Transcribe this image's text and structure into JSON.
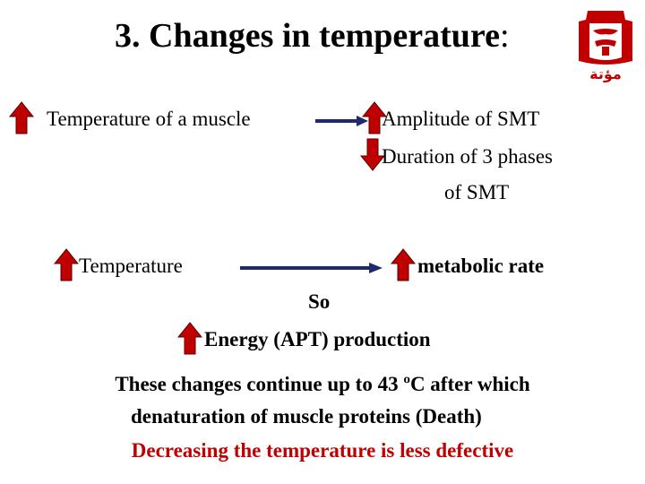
{
  "slide": {
    "title_main": "3. Changes in temperature",
    "title_colon": ":",
    "logo_text": "مؤتة",
    "row1": {
      "left": "Temperature of a muscle",
      "right_a": "Amplitude of SMT",
      "right_b_line1": "Duration of 3 phases",
      "right_b_line2": "of SMT"
    },
    "row2": {
      "left": "Temperature",
      "right": "metabolic rate"
    },
    "so": "So",
    "energy": "Energy (APT) production",
    "note_line1": "These changes continue up to 43 ºC after which",
    "note_line2": "denaturation of muscle proteins (Death)",
    "note_red": "Decreasing the temperature is less defective"
  },
  "colors": {
    "arrow_fill": "#c00000",
    "arrow_stroke": "#5a0000",
    "connector": "#1f2a6e",
    "highlight_text": "#c00000"
  },
  "icons": [
    "arrow-up-icon",
    "arrow-down-icon",
    "right-arrow-icon",
    "university-logo-icon"
  ]
}
